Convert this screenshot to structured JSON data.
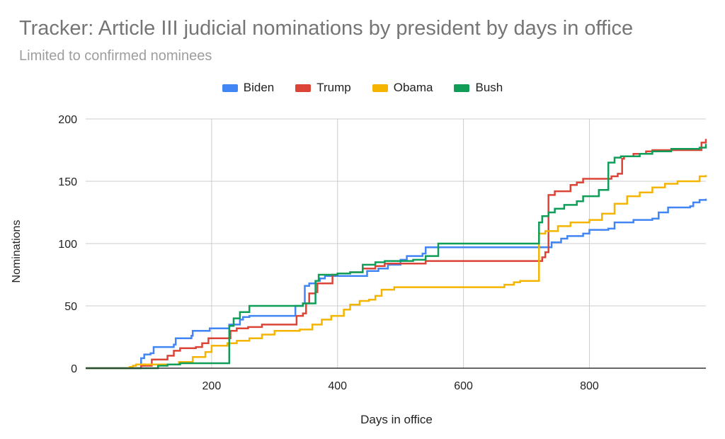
{
  "chart_data": {
    "type": "line",
    "title": "Tracker: Article III judicial nominations by president by days in office",
    "subtitle": "Limited to confirmed nominees",
    "xlabel": "Days in office",
    "ylabel": "Nominations",
    "xlim": [
      0,
      985
    ],
    "ylim": [
      0,
      200
    ],
    "x_ticks": [
      200,
      400,
      600,
      800
    ],
    "y_ticks": [
      0,
      50,
      100,
      150,
      200
    ],
    "grid": true,
    "legend_position": "top",
    "step": true,
    "series": [
      {
        "name": "Biden",
        "color": "#4285f4",
        "points": [
          [
            0,
            0
          ],
          [
            85,
            0
          ],
          [
            88,
            8
          ],
          [
            93,
            11
          ],
          [
            103,
            12
          ],
          [
            108,
            17
          ],
          [
            140,
            19
          ],
          [
            143,
            24
          ],
          [
            168,
            26
          ],
          [
            170,
            30
          ],
          [
            195,
            30
          ],
          [
            197,
            32
          ],
          [
            225,
            32
          ],
          [
            228,
            35
          ],
          [
            235,
            35
          ],
          [
            245,
            39
          ],
          [
            250,
            41
          ],
          [
            260,
            42
          ],
          [
            330,
            42
          ],
          [
            333,
            50
          ],
          [
            345,
            52
          ],
          [
            348,
            66
          ],
          [
            355,
            68
          ],
          [
            365,
            70
          ],
          [
            372,
            72
          ],
          [
            380,
            74
          ],
          [
            440,
            74
          ],
          [
            447,
            78
          ],
          [
            465,
            80
          ],
          [
            480,
            83
          ],
          [
            500,
            87
          ],
          [
            510,
            90
          ],
          [
            535,
            92
          ],
          [
            540,
            97
          ],
          [
            600,
            97
          ],
          [
            700,
            97
          ],
          [
            730,
            97
          ],
          [
            740,
            101
          ],
          [
            755,
            104
          ],
          [
            765,
            106
          ],
          [
            790,
            108
          ],
          [
            800,
            111
          ],
          [
            830,
            112
          ],
          [
            840,
            117
          ],
          [
            870,
            119
          ],
          [
            900,
            120
          ],
          [
            910,
            125
          ],
          [
            925,
            129
          ],
          [
            960,
            130
          ],
          [
            965,
            133
          ],
          [
            975,
            135
          ],
          [
            985,
            136
          ]
        ]
      },
      {
        "name": "Trump",
        "color": "#db4437",
        "points": [
          [
            0,
            0
          ],
          [
            85,
            0
          ],
          [
            88,
            2
          ],
          [
            100,
            2
          ],
          [
            105,
            7
          ],
          [
            130,
            10
          ],
          [
            140,
            14
          ],
          [
            150,
            16
          ],
          [
            175,
            17
          ],
          [
            185,
            20
          ],
          [
            195,
            24
          ],
          [
            225,
            24
          ],
          [
            230,
            30
          ],
          [
            240,
            32
          ],
          [
            258,
            33
          ],
          [
            280,
            35
          ],
          [
            330,
            35
          ],
          [
            335,
            42
          ],
          [
            345,
            44
          ],
          [
            350,
            52
          ],
          [
            355,
            60
          ],
          [
            365,
            61
          ],
          [
            368,
            68
          ],
          [
            390,
            68
          ],
          [
            392,
            75
          ],
          [
            400,
            76
          ],
          [
            420,
            77
          ],
          [
            440,
            80
          ],
          [
            460,
            82
          ],
          [
            475,
            84
          ],
          [
            510,
            84
          ],
          [
            540,
            86
          ],
          [
            600,
            86
          ],
          [
            720,
            86
          ],
          [
            725,
            89
          ],
          [
            730,
            93
          ],
          [
            735,
            139
          ],
          [
            745,
            142
          ],
          [
            770,
            147
          ],
          [
            780,
            149
          ],
          [
            790,
            152
          ],
          [
            830,
            152
          ],
          [
            835,
            154
          ],
          [
            845,
            156
          ],
          [
            852,
            168
          ],
          [
            855,
            170
          ],
          [
            870,
            172
          ],
          [
            890,
            174
          ],
          [
            900,
            175
          ],
          [
            975,
            175
          ],
          [
            978,
            181
          ],
          [
            985,
            184
          ]
        ]
      },
      {
        "name": "Obama",
        "color": "#f4b400",
        "points": [
          [
            0,
            0
          ],
          [
            65,
            0
          ],
          [
            70,
            1
          ],
          [
            75,
            2
          ],
          [
            80,
            3
          ],
          [
            108,
            3
          ],
          [
            115,
            3
          ],
          [
            148,
            5
          ],
          [
            170,
            9
          ],
          [
            190,
            13
          ],
          [
            200,
            18
          ],
          [
            225,
            20
          ],
          [
            240,
            22
          ],
          [
            260,
            24
          ],
          [
            280,
            27
          ],
          [
            300,
            30
          ],
          [
            330,
            30
          ],
          [
            340,
            31
          ],
          [
            360,
            35
          ],
          [
            375,
            39
          ],
          [
            390,
            42
          ],
          [
            410,
            47
          ],
          [
            420,
            51
          ],
          [
            435,
            54
          ],
          [
            450,
            55
          ],
          [
            460,
            58
          ],
          [
            470,
            63
          ],
          [
            490,
            65
          ],
          [
            550,
            65
          ],
          [
            600,
            65
          ],
          [
            650,
            65
          ],
          [
            665,
            67
          ],
          [
            680,
            69
          ],
          [
            690,
            70
          ],
          [
            715,
            70
          ],
          [
            720,
            108
          ],
          [
            730,
            110
          ],
          [
            750,
            114
          ],
          [
            770,
            117
          ],
          [
            800,
            119
          ],
          [
            820,
            124
          ],
          [
            840,
            132
          ],
          [
            860,
            138
          ],
          [
            880,
            141
          ],
          [
            900,
            145
          ],
          [
            920,
            148
          ],
          [
            940,
            150
          ],
          [
            965,
            150
          ],
          [
            975,
            154
          ],
          [
            985,
            155
          ]
        ]
      },
      {
        "name": "Bush",
        "color": "#0f9d58",
        "points": [
          [
            0,
            0
          ],
          [
            108,
            0
          ],
          [
            115,
            2
          ],
          [
            130,
            3
          ],
          [
            150,
            4
          ],
          [
            225,
            4
          ],
          [
            228,
            34
          ],
          [
            235,
            40
          ],
          [
            245,
            45
          ],
          [
            260,
            50
          ],
          [
            290,
            50
          ],
          [
            330,
            50
          ],
          [
            345,
            52
          ],
          [
            360,
            52
          ],
          [
            365,
            70
          ],
          [
            370,
            75
          ],
          [
            400,
            76
          ],
          [
            420,
            77
          ],
          [
            440,
            83
          ],
          [
            460,
            85
          ],
          [
            475,
            86
          ],
          [
            520,
            87
          ],
          [
            540,
            90
          ],
          [
            560,
            100
          ],
          [
            620,
            100
          ],
          [
            700,
            100
          ],
          [
            715,
            100
          ],
          [
            720,
            117
          ],
          [
            725,
            122
          ],
          [
            735,
            125
          ],
          [
            745,
            128
          ],
          [
            760,
            131
          ],
          [
            780,
            134
          ],
          [
            790,
            138
          ],
          [
            815,
            143
          ],
          [
            830,
            165
          ],
          [
            840,
            169
          ],
          [
            850,
            170
          ],
          [
            880,
            172
          ],
          [
            900,
            174
          ],
          [
            930,
            176
          ],
          [
            975,
            177
          ],
          [
            985,
            180
          ]
        ]
      }
    ]
  }
}
